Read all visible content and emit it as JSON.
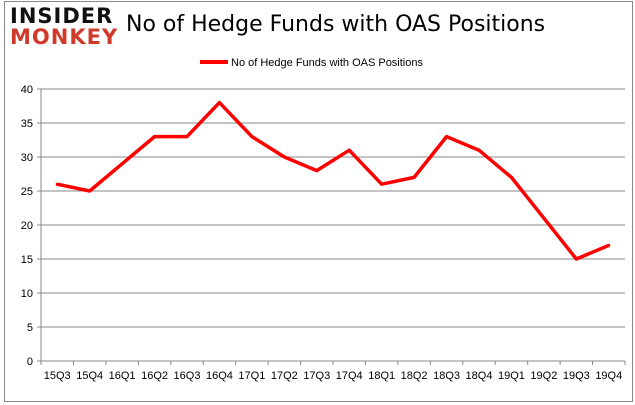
{
  "logo": {
    "line1": "INSIDER",
    "line2": "MONKEY"
  },
  "chart_data": {
    "type": "line",
    "title": "No of Hedge Funds with OAS Positions",
    "categories": [
      "15Q3",
      "15Q4",
      "16Q1",
      "16Q2",
      "16Q3",
      "16Q4",
      "17Q1",
      "17Q2",
      "17Q3",
      "17Q4",
      "18Q1",
      "18Q2",
      "18Q3",
      "18Q4",
      "19Q1",
      "19Q2",
      "19Q3",
      "19Q4"
    ],
    "series": [
      {
        "name": "No of Hedge Funds with OAS Positions",
        "values": [
          26,
          25,
          29,
          33,
          33,
          38,
          33,
          30,
          28,
          31,
          26,
          27,
          33,
          31,
          27,
          21,
          15,
          17
        ],
        "color": "#ff0000"
      }
    ],
    "ylim": [
      0,
      40
    ],
    "yticks": [
      0,
      5,
      10,
      15,
      20,
      25,
      30,
      35,
      40
    ],
    "grid": true,
    "legend": "top-center"
  }
}
